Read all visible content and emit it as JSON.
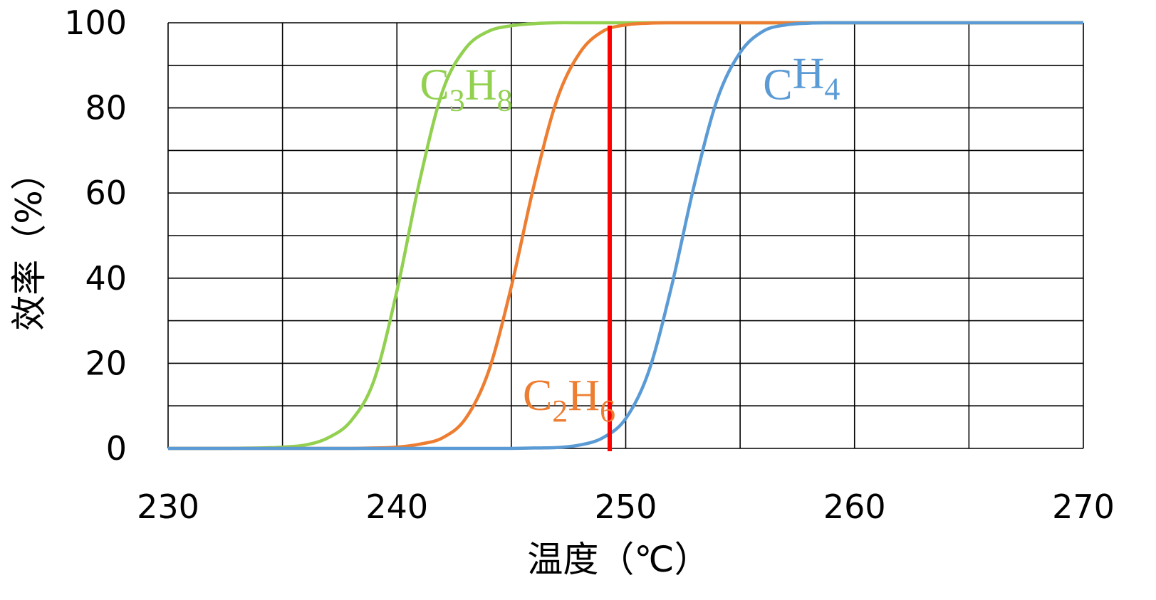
{
  "chart_data": {
    "type": "line",
    "xlabel": "温度（℃）",
    "ylabel": "效率（%）",
    "xlim": [
      230,
      270
    ],
    "ylim": [
      0,
      100
    ],
    "x_ticks": [
      230,
      240,
      250,
      260,
      270
    ],
    "y_ticks": [
      0,
      20,
      40,
      60,
      80,
      100
    ],
    "x_gridlines": [
      230,
      235,
      240,
      245,
      250,
      255,
      260,
      265,
      270
    ],
    "y_gridlines": [
      0,
      10,
      20,
      30,
      40,
      50,
      60,
      70,
      80,
      90,
      100
    ],
    "grid": true,
    "legend": "inline labels",
    "x": [
      230,
      232,
      234,
      235,
      236,
      237,
      238,
      239,
      240,
      241,
      242,
      243,
      244,
      245,
      246,
      247,
      248,
      249,
      250,
      251,
      252,
      253,
      254,
      255,
      256,
      257,
      258,
      259,
      260,
      262,
      265,
      268,
      270
    ],
    "series": [
      {
        "name_parts": [
          [
            "C",
            ""
          ],
          [
            "3",
            "sub"
          ],
          [
            "H",
            ""
          ],
          [
            "8",
            "sub"
          ]
        ],
        "color": "#92d050",
        "label_anchor": [
          241.0,
          82
        ],
        "values": [
          0,
          0,
          0.1,
          0.3,
          0.8,
          2.5,
          6.5,
          16,
          37,
          63,
          84,
          94,
          98,
          99.3,
          99.8,
          100,
          100,
          100,
          100,
          100,
          100,
          100,
          100,
          100,
          100,
          100,
          100,
          100,
          100,
          100,
          100,
          100,
          100
        ]
      },
      {
        "name_parts": [
          [
            "C",
            ""
          ],
          [
            "2",
            "sub"
          ],
          [
            "H",
            ""
          ],
          [
            "6",
            "sub"
          ]
        ],
        "color": "#ed7d31",
        "label_anchor": [
          245.5,
          9
        ],
        "values": [
          0,
          0,
          0,
          0,
          0,
          0,
          0,
          0.1,
          0.3,
          1,
          2.5,
          7,
          18,
          38,
          62,
          82,
          93,
          98,
          99.5,
          99.9,
          100,
          100,
          100,
          100,
          100,
          100,
          100,
          100,
          100,
          100,
          100,
          100,
          100
        ]
      },
      {
        "name_parts": [
          [
            "C",
            ""
          ],
          [
            "H",
            ""
          ],
          [
            "4",
            "sub"
          ]
        ],
        "color": "#5b9bd5",
        "label_anchor": [
          256.0,
          82
        ],
        "values": [
          0,
          0,
          0,
          0,
          0,
          0,
          0,
          0,
          0,
          0,
          0,
          0,
          0,
          0,
          0.1,
          0.2,
          0.8,
          2.5,
          7,
          18,
          38,
          62,
          82,
          93,
          98,
          99.5,
          99.9,
          100,
          100,
          100,
          100,
          100,
          100
        ]
      }
    ],
    "markers": [
      {
        "x": 249.3,
        "color": "#ff0000"
      }
    ]
  }
}
